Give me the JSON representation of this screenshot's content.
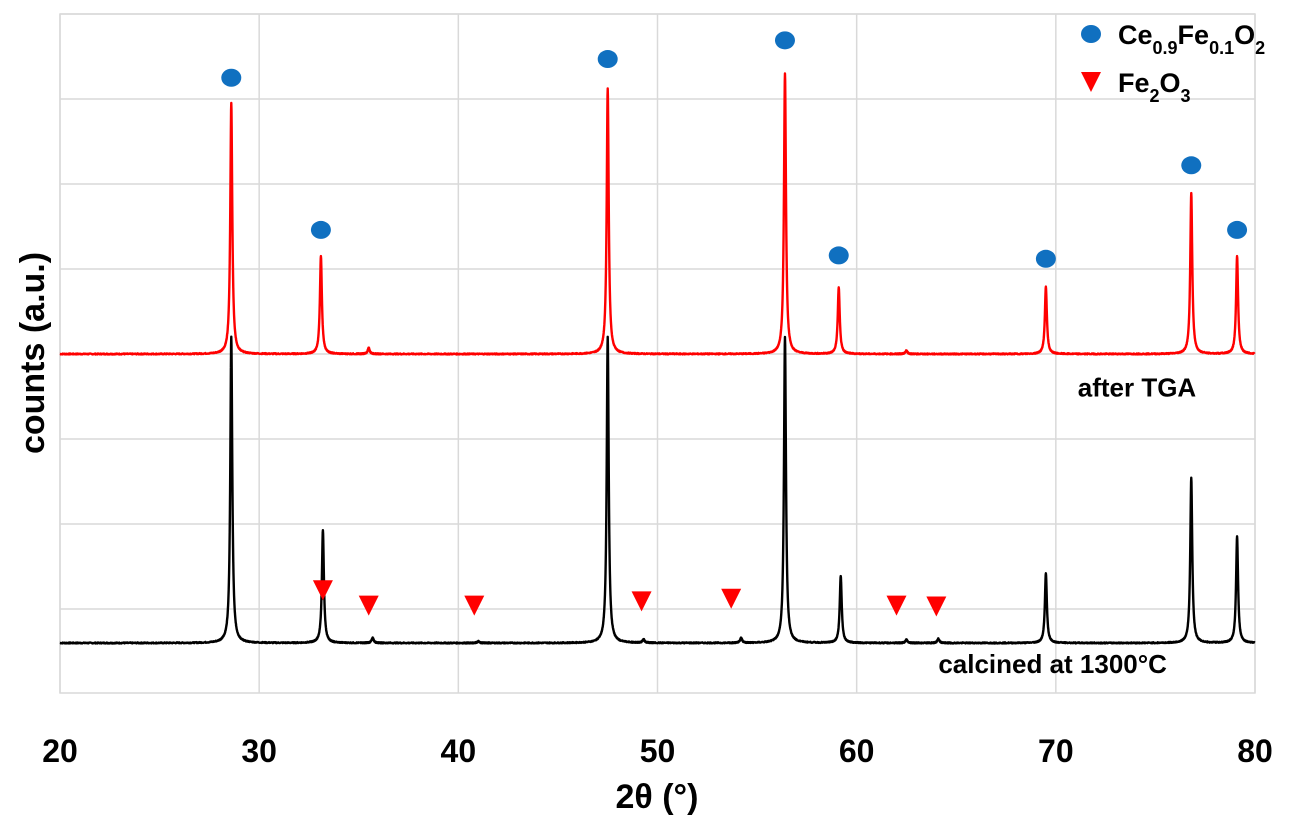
{
  "chart_data": {
    "type": "line",
    "xlabel": "2θ (°)",
    "ylabel": "counts (a.u.)",
    "xlim": [
      20,
      80
    ],
    "xticks": [
      "20",
      "30",
      "40",
      "50",
      "60",
      "70",
      "80"
    ],
    "grid": true,
    "legend_position": "top-right",
    "legend": [
      {
        "label": "Ce0.9Fe0.1O2",
        "base": "Ce",
        "parts": [
          [
            "0.9",
            "Fe"
          ],
          [
            "0.1",
            "O"
          ],
          [
            "2",
            ""
          ]
        ],
        "marker": "circle",
        "color": "#1070c0"
      },
      {
        "label": "Fe2O3",
        "base": "Fe",
        "parts": [
          [
            "2",
            "O"
          ],
          [
            "3",
            ""
          ]
        ],
        "marker": "triangle-down",
        "color": "#ff0000"
      }
    ],
    "series": [
      {
        "name": "after TGA",
        "color": "#ff0000",
        "baseline": 3.4,
        "peaks": [
          {
            "x": 28.6,
            "h": 2.95
          },
          {
            "x": 33.1,
            "h": 1.15
          },
          {
            "x": 35.5,
            "h": 0.07
          },
          {
            "x": 47.5,
            "h": 3.12
          },
          {
            "x": 56.4,
            "h": 3.3
          },
          {
            "x": 59.1,
            "h": 0.78
          },
          {
            "x": 62.5,
            "h": 0.04
          },
          {
            "x": 69.5,
            "h": 0.79
          },
          {
            "x": 76.8,
            "h": 1.89
          },
          {
            "x": 79.1,
            "h": 1.15
          }
        ]
      },
      {
        "name": "calcined at 1300°C",
        "color": "#000000",
        "baseline": 0.0,
        "peaks": [
          {
            "x": 28.6,
            "h": 3.6
          },
          {
            "x": 33.2,
            "h": 1.33
          },
          {
            "x": 35.7,
            "h": 0.06
          },
          {
            "x": 41.0,
            "h": 0.02
          },
          {
            "x": 47.5,
            "h": 3.6
          },
          {
            "x": 49.3,
            "h": 0.04
          },
          {
            "x": 54.2,
            "h": 0.06
          },
          {
            "x": 56.4,
            "h": 3.6
          },
          {
            "x": 59.2,
            "h": 0.79
          },
          {
            "x": 62.5,
            "h": 0.04
          },
          {
            "x": 64.1,
            "h": 0.05
          },
          {
            "x": 69.5,
            "h": 0.82
          },
          {
            "x": 76.8,
            "h": 1.94
          },
          {
            "x": 79.1,
            "h": 1.25
          }
        ]
      }
    ],
    "markers": [
      {
        "series": "Ce0.9Fe0.1O2",
        "shape": "circle",
        "color": "#1070c0",
        "points": [
          [
            28.6,
            6.65
          ],
          [
            33.1,
            4.86
          ],
          [
            47.5,
            6.87
          ],
          [
            56.4,
            7.09
          ],
          [
            59.1,
            4.56
          ],
          [
            69.5,
            4.52
          ],
          [
            76.8,
            5.62
          ],
          [
            79.1,
            4.86
          ]
        ]
      },
      {
        "series": "Fe2O3",
        "shape": "triangle-down",
        "color": "#ff0000",
        "points": [
          [
            33.2,
            0.62
          ],
          [
            35.5,
            0.44
          ],
          [
            40.8,
            0.44
          ],
          [
            49.2,
            0.49
          ],
          [
            53.7,
            0.52
          ],
          [
            62.0,
            0.44
          ],
          [
            64.0,
            0.43
          ]
        ]
      }
    ],
    "annotations": [
      {
        "text": "after TGA",
        "x": 71.1,
        "y": 2.9
      },
      {
        "text": "calcined at 1300°C",
        "x": 64.1,
        "y": -0.35
      }
    ]
  }
}
